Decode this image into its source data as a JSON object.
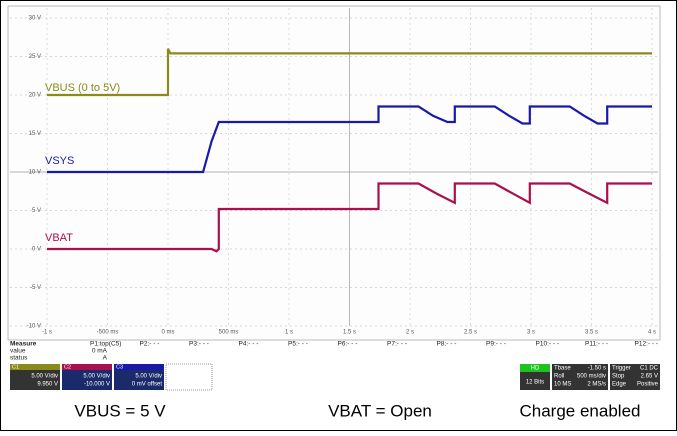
{
  "chart_data": {
    "type": "line",
    "xticks": [
      {
        "value": -1,
        "label": "-1 s"
      },
      {
        "value": -0.5,
        "label": "-500 ms"
      },
      {
        "value": 0,
        "label": "0 ms"
      },
      {
        "value": 0.5,
        "label": "500 ms"
      },
      {
        "value": 1,
        "label": "1 s"
      },
      {
        "value": 1.5,
        "label": "1.5 s"
      },
      {
        "value": 2,
        "label": "2 s"
      },
      {
        "value": 2.5,
        "label": "2.5 s"
      },
      {
        "value": 3,
        "label": "3 s"
      },
      {
        "value": 3.5,
        "label": "3.5 s"
      },
      {
        "value": 4,
        "label": "4 s"
      }
    ],
    "xlim": [
      -1,
      4
    ],
    "yticks": [
      {
        "value": 30,
        "label": "30 V"
      },
      {
        "value": 25,
        "label": "25 V"
      },
      {
        "value": 20,
        "label": "20 V"
      },
      {
        "value": 15,
        "label": "15 V"
      },
      {
        "value": 10,
        "label": "10 V"
      },
      {
        "value": 5,
        "label": "5 V"
      },
      {
        "value": 0,
        "label": "0 V"
      },
      {
        "value": -5,
        "label": "-5 V"
      },
      {
        "value": -10,
        "label": "-10 V"
      }
    ],
    "ylim": [
      -10,
      30
    ],
    "grid": true,
    "series": [
      {
        "name": "VBUS (0 to 5V)",
        "color": "#8b8a1c",
        "x": [
          -1,
          0,
          0,
          0.02,
          4
        ],
        "values": [
          20,
          20,
          26,
          25.4,
          25.4
        ]
      },
      {
        "name": "VSYS",
        "color": "#1a1aa8",
        "x": [
          -1,
          0.29,
          0.36,
          0.42,
          1.74,
          1.74,
          2.07,
          2.19,
          2.31,
          2.37,
          2.37,
          2.7,
          2.82,
          2.93,
          2.99,
          2.99,
          3.32,
          3.44,
          3.55,
          3.63,
          3.63,
          4
        ],
        "values": [
          10,
          10,
          14,
          16.5,
          16.5,
          18.5,
          18.5,
          17.3,
          16.5,
          16.5,
          18.5,
          18.5,
          17.3,
          16.3,
          16.3,
          18.5,
          18.5,
          17.3,
          16.3,
          16.3,
          18.5,
          18.5
        ]
      },
      {
        "name": "VBAT",
        "color": "#a8104e",
        "x": [
          -1,
          0.36,
          0.4,
          0.42,
          0.42,
          1.74,
          1.74,
          2.07,
          2.22,
          2.37,
          2.37,
          2.7,
          2.85,
          2.99,
          2.99,
          3.32,
          3.48,
          3.63,
          3.63,
          4
        ],
        "values": [
          0,
          0,
          -0.3,
          0,
          5.2,
          5.2,
          8.5,
          8.5,
          7.2,
          6,
          8.5,
          8.5,
          7.2,
          6,
          8.5,
          8.5,
          7.2,
          6,
          8.5,
          8.5
        ]
      }
    ]
  },
  "panel": {
    "measure": [
      "Measure",
      "value",
      "status"
    ],
    "params": [
      "P1:top(C5)",
      "P2:- - -",
      "P3:- - -",
      "P4:- - -",
      "P5:- - -",
      "P6:- - -",
      "P7:- - -",
      "P8:- - -",
      "P9:- - -",
      "P10:- - -",
      "P11:- - -",
      "P12:- - -"
    ],
    "p1_value": "0 mA",
    "p1_status": "A",
    "channels": [
      [
        "C1",
        "5.00 V/div",
        "9.950 V"
      ],
      [
        "C2",
        "5.00 V/div",
        "-10.000 V"
      ],
      [
        "C3",
        "5.00 V/div",
        "0 mV offset"
      ]
    ],
    "acq": [
      "HD",
      "12 Bits"
    ],
    "timebase": [
      "Tbase",
      "-1.50 s",
      "Roll",
      "500 ms/div",
      "10 MS",
      "2 MS/s"
    ],
    "trigger": [
      "Trigger",
      "C1 DC",
      "Stop",
      "2.65 V",
      "Edge",
      "Positive"
    ]
  },
  "caption": [
    "VBUS = 5 V",
    "VBAT = Open",
    "Charge enabled"
  ]
}
